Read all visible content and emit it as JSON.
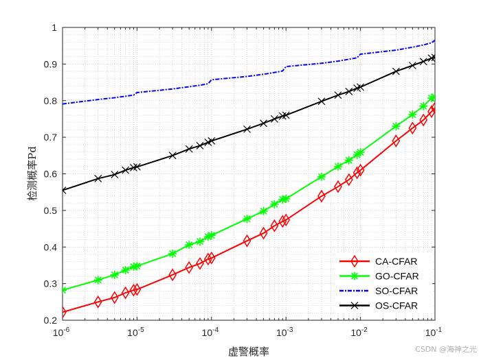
{
  "chart_data": {
    "type": "line",
    "title": "",
    "xlabel": "虚警概率",
    "ylabel": "检测概率Pd",
    "xscale": "log",
    "xlim": [
      1e-06,
      0.1
    ],
    "ylim": [
      0.2,
      1.0
    ],
    "grid": "on (major and minor, dotted)",
    "legend_position": "bottom-right",
    "x_tick_labels": [
      {
        "base": "10",
        "exp": "-6"
      },
      {
        "base": "10",
        "exp": "-5"
      },
      {
        "base": "10",
        "exp": "-4"
      },
      {
        "base": "10",
        "exp": "-3"
      },
      {
        "base": "10",
        "exp": "-2"
      },
      {
        "base": "10",
        "exp": "-1"
      }
    ],
    "y_tick_labels": [
      "0.2",
      "0.3",
      "0.4",
      "0.5",
      "0.6",
      "0.7",
      "0.8",
      "0.9",
      "1"
    ],
    "x": [
      1e-06,
      3e-06,
      5e-06,
      7e-06,
      9e-06,
      1e-05,
      3e-05,
      5e-05,
      7e-05,
      9e-05,
      0.0001,
      0.0003,
      0.0005,
      0.0007,
      0.0009,
      0.001,
      0.003,
      0.005,
      0.007,
      0.009,
      0.01,
      0.03,
      0.05,
      0.07,
      0.09,
      0.1
    ],
    "series": [
      {
        "name": "CA-CFAR",
        "color": "#ff0000",
        "marker": "diamond",
        "dash": "solid",
        "values": [
          0.222,
          0.25,
          0.262,
          0.275,
          0.282,
          0.284,
          0.324,
          0.344,
          0.355,
          0.367,
          0.37,
          0.417,
          0.438,
          0.458,
          0.47,
          0.474,
          0.539,
          0.565,
          0.584,
          0.603,
          0.61,
          0.69,
          0.725,
          0.747,
          0.77,
          0.78
        ]
      },
      {
        "name": "GO-CFAR",
        "color": "#00ff00",
        "marker": "asterisk",
        "dash": "solid",
        "values": [
          0.282,
          0.31,
          0.324,
          0.337,
          0.346,
          0.348,
          0.382,
          0.406,
          0.415,
          0.428,
          0.432,
          0.477,
          0.498,
          0.517,
          0.53,
          0.532,
          0.592,
          0.62,
          0.637,
          0.652,
          0.659,
          0.73,
          0.762,
          0.785,
          0.807,
          0.81
        ]
      },
      {
        "name": "SO-CFAR",
        "color": "#0000ff",
        "marker": "none",
        "dash": "dashdot",
        "values": [
          0.791,
          0.803,
          0.808,
          0.812,
          0.815,
          0.822,
          0.832,
          0.838,
          0.842,
          0.846,
          0.857,
          0.866,
          0.872,
          0.877,
          0.881,
          0.893,
          0.902,
          0.908,
          0.913,
          0.917,
          0.927,
          0.938,
          0.946,
          0.952,
          0.958,
          0.965
        ]
      },
      {
        "name": "OS-CFAR",
        "color": "#000000",
        "marker": "x",
        "dash": "solid",
        "values": [
          0.555,
          0.587,
          0.598,
          0.61,
          0.617,
          0.619,
          0.65,
          0.668,
          0.677,
          0.686,
          0.69,
          0.722,
          0.738,
          0.75,
          0.758,
          0.76,
          0.798,
          0.815,
          0.825,
          0.834,
          0.837,
          0.88,
          0.896,
          0.907,
          0.916,
          0.918
        ]
      }
    ]
  },
  "watermark": "CSDN @海神之光"
}
